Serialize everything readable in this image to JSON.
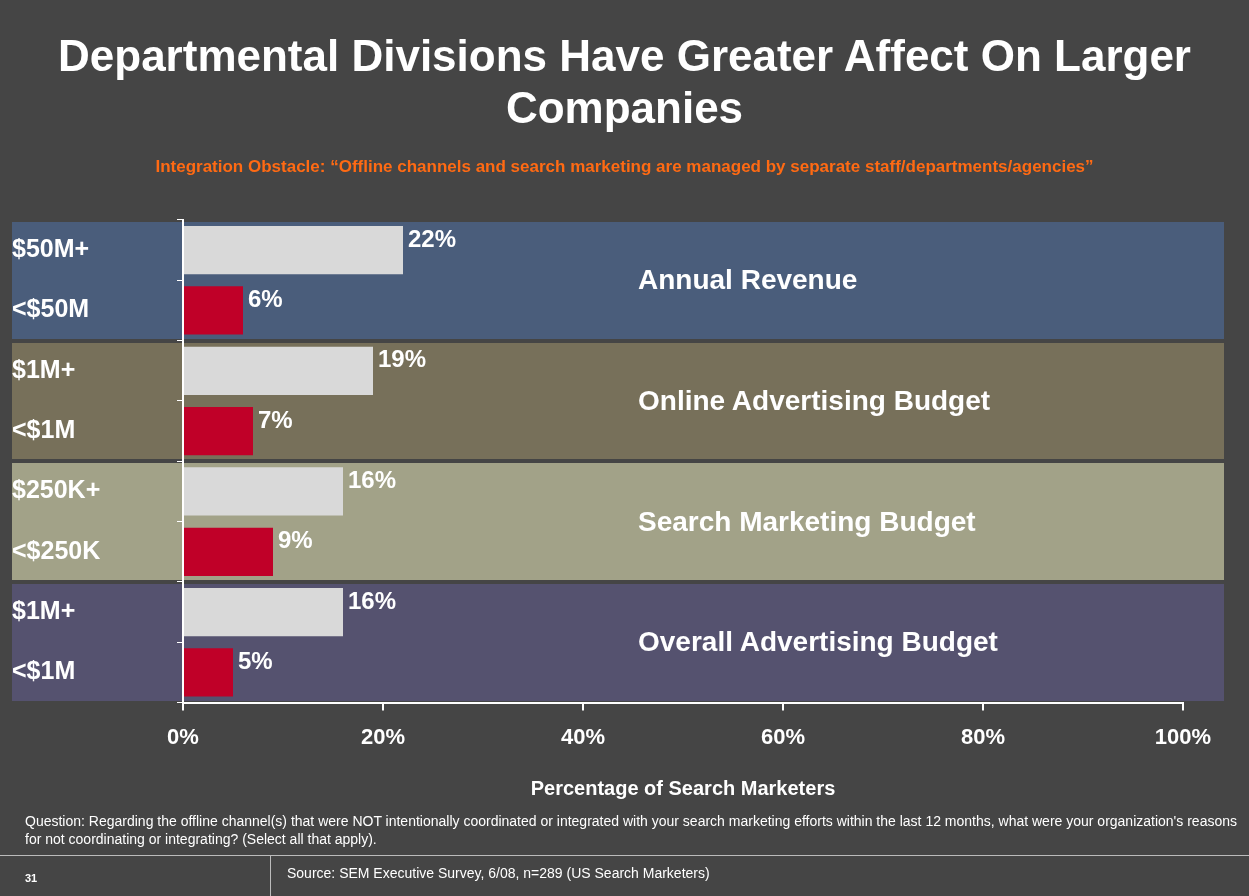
{
  "chart_data": {
    "type": "bar",
    "orientation": "horizontal",
    "title": "Departmental Divisions Have Greater Affect On Larger Companies",
    "subtitle": "Integration Obstacle: “Offline channels and search marketing are managed by separate staff/departments/agencies”",
    "xlabel": "Percentage of Search Marketers",
    "categories": [
      "$50M+",
      "<$50M",
      "$1M+",
      "<$1M",
      "$250K+",
      "<$250K",
      "$1M+",
      "<$1M"
    ],
    "values": [
      22,
      6,
      19,
      7,
      16,
      9,
      16,
      5
    ],
    "colors": [
      "#d9d9d9",
      "#c00028",
      "#d9d9d9",
      "#c00028",
      "#d9d9d9",
      "#c00028",
      "#d9d9d9",
      "#c00028"
    ],
    "value_labels": [
      "22%",
      "6%",
      "19%",
      "7%",
      "16%",
      "9%",
      "16%",
      "5%"
    ],
    "xlim": [
      0,
      100
    ],
    "xticks": [
      {
        "value": 0,
        "label": "0%"
      },
      {
        "value": 20,
        "label": "20%"
      },
      {
        "value": 40,
        "label": "40%"
      },
      {
        "value": 60,
        "label": "60%"
      },
      {
        "value": 80,
        "label": "80%"
      },
      {
        "value": 100,
        "label": "100%"
      }
    ],
    "legend": false,
    "annotations": [
      "Annual Revenue",
      "Online Advertising Budget",
      "Search Marketing Budget",
      "Overall Advertising Budget",
      "Question:  Regarding the offline channel(s) that were NOT intentionally coordinated or integrated with your search marketing efforts within the last 12 months, what were your organization's reasons for not coordinating or integrating? (Select all that apply).",
      "31",
      "Source: SEM Executive Survey, 6/08, n=289 (US Search Marketers)"
    ]
  }
}
